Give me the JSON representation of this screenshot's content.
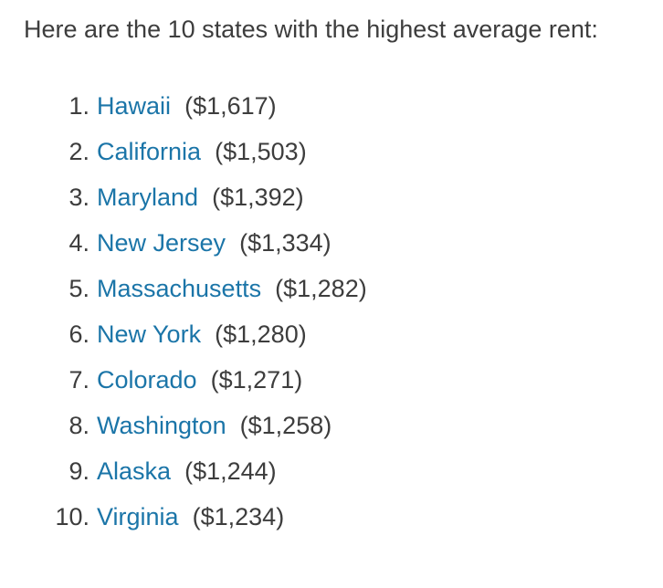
{
  "intro": "Here are the 10 states with the highest average rent:",
  "colors": {
    "text": "#3d3d3d",
    "link": "#1b75a8"
  },
  "states": [
    {
      "rank": "1.",
      "name": "Hawaii",
      "rent": "($1,617)"
    },
    {
      "rank": "2.",
      "name": "California",
      "rent": "($1,503)"
    },
    {
      "rank": "3.",
      "name": "Maryland",
      "rent": "($1,392)"
    },
    {
      "rank": "4.",
      "name": "New Jersey",
      "rent": "($1,334)"
    },
    {
      "rank": "5.",
      "name": "Massachusetts",
      "rent": "($1,282)"
    },
    {
      "rank": "6.",
      "name": "New York",
      "rent": "($1,280)"
    },
    {
      "rank": "7.",
      "name": "Colorado",
      "rent": "($1,271)"
    },
    {
      "rank": "8.",
      "name": "Washington",
      "rent": "($1,258)"
    },
    {
      "rank": "9.",
      "name": "Alaska",
      "rent": "($1,244)"
    },
    {
      "rank": "10.",
      "name": "Virginia",
      "rent": "($1,234)"
    }
  ]
}
